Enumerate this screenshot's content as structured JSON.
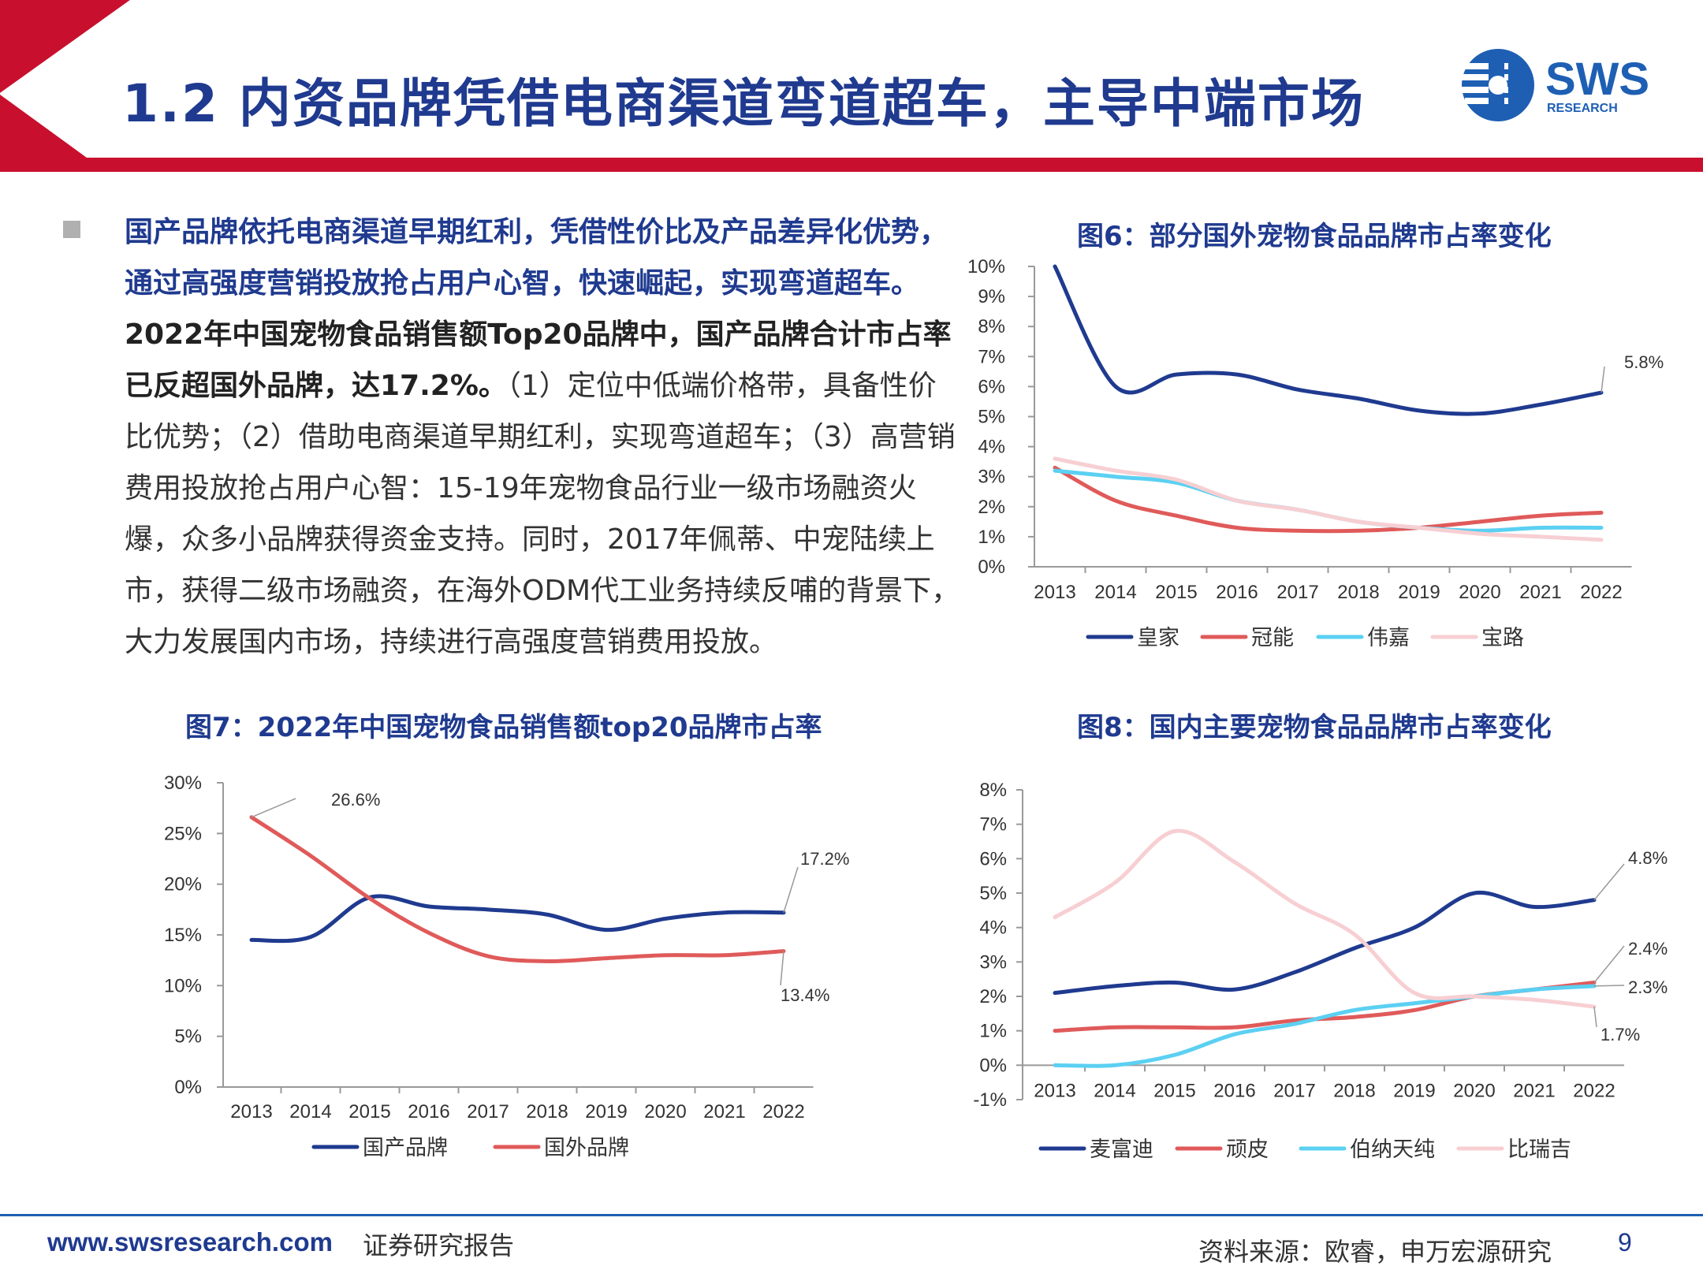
{
  "header": {
    "title": "1.2  内资品牌凭借电商渠道弯道超车，主导中端市场",
    "logo_text": "SWS",
    "logo_sub": "RESEARCH"
  },
  "body_text": {
    "part1": "国产品牌依托电商渠道早期红利，凭借性价比及产品差异化优势，通过高强度营销投放抢占用户心智，快速崛起，实现弯道超车。",
    "part2": "2022年中国宠物食品销售额Top20品牌中，国产品牌合计市占率已反超国外品牌，达17.2%。",
    "part3": "（1）定位中低端价格带，具备性价比优势；（2）借助电商渠道早期红利，实现弯道超车；（3）高营销费用投放抢占用户心智：15-19年宠物食品行业一级市场融资火爆，众多小品牌获得资金支持。同时，2017年佩蒂、中宠陆续上市，获得二级市场融资，在海外ODM代工业务持续反哺的背景下，大力发展国内市场，持续进行高强度营销费用投放。"
  },
  "footer": {
    "url": "www.swsresearch.com",
    "type": "证券研究报告",
    "source": "资料来源：欧睿，申万宏源研究",
    "page": "9"
  },
  "colors": {
    "navy": "#1f3a8f",
    "red": "#e05a5a",
    "cyan": "#5bd0f2",
    "pink": "#f7cfd2",
    "header_red": "#c8102e"
  },
  "chart_data": [
    {
      "id": "fig6",
      "type": "line",
      "title": "图6：部分国外宠物食品品牌市占率变化",
      "x": [
        "2013",
        "2014",
        "2015",
        "2016",
        "2017",
        "2018",
        "2019",
        "2020",
        "2021",
        "2022"
      ],
      "ylim": [
        0,
        10
      ],
      "yticks": [
        "0%",
        "1%",
        "2%",
        "3%",
        "4%",
        "5%",
        "6%",
        "7%",
        "8%",
        "9%",
        "10%"
      ],
      "series": [
        {
          "name": "皇家",
          "color": "#1f3a8f",
          "values": [
            10.0,
            6.0,
            6.4,
            6.4,
            5.9,
            5.6,
            5.2,
            5.1,
            5.4,
            5.8
          ]
        },
        {
          "name": "冠能",
          "color": "#e05a5a",
          "values": [
            3.3,
            2.2,
            1.7,
            1.3,
            1.2,
            1.2,
            1.3,
            1.5,
            1.7,
            1.8
          ]
        },
        {
          "name": "伟嘉",
          "color": "#5bd0f2",
          "values": [
            3.2,
            3.0,
            2.8,
            2.2,
            1.9,
            1.5,
            1.3,
            1.2,
            1.3,
            1.3
          ]
        },
        {
          "name": "宝路",
          "color": "#f7cfd2",
          "values": [
            3.6,
            3.2,
            2.9,
            2.2,
            1.9,
            1.5,
            1.3,
            1.1,
            1.0,
            0.9
          ]
        }
      ],
      "annotations": [
        "5.8%"
      ]
    },
    {
      "id": "fig7",
      "type": "line",
      "title": "图7：2022年中国宠物食品销售额top20品牌市占率",
      "x": [
        "2013",
        "2014",
        "2015",
        "2016",
        "2017",
        "2018",
        "2019",
        "2020",
        "2021",
        "2022"
      ],
      "ylim": [
        0,
        30
      ],
      "yticks": [
        "0%",
        "5%",
        "10%",
        "15%",
        "20%",
        "25%",
        "30%"
      ],
      "series": [
        {
          "name": "国产品牌",
          "color": "#1f3a8f",
          "values": [
            14.5,
            14.8,
            18.7,
            17.8,
            17.5,
            17.0,
            15.5,
            16.6,
            17.2,
            17.2
          ]
        },
        {
          "name": "国外品牌",
          "color": "#e05a5a",
          "values": [
            26.6,
            22.8,
            18.6,
            15.2,
            12.9,
            12.4,
            12.7,
            13.0,
            13.0,
            13.4
          ]
        }
      ],
      "annotations": [
        "26.6%",
        "17.2%",
        "13.4%"
      ]
    },
    {
      "id": "fig8",
      "type": "line",
      "title": "图8：国内主要宠物食品品牌市占率变化",
      "x": [
        "2013",
        "2014",
        "2015",
        "2016",
        "2017",
        "2018",
        "2019",
        "2020",
        "2021",
        "2022"
      ],
      "ylim": [
        -1,
        8
      ],
      "yticks": [
        "-1%",
        "0%",
        "1%",
        "2%",
        "3%",
        "4%",
        "5%",
        "6%",
        "7%",
        "8%"
      ],
      "series": [
        {
          "name": "麦富迪",
          "color": "#1f3a8f",
          "values": [
            2.1,
            2.3,
            2.4,
            2.2,
            2.7,
            3.4,
            4.0,
            5.0,
            4.6,
            4.8
          ]
        },
        {
          "name": "顽皮",
          "color": "#e05a5a",
          "values": [
            1.0,
            1.1,
            1.1,
            1.1,
            1.3,
            1.4,
            1.6,
            2.0,
            2.2,
            2.4
          ]
        },
        {
          "name": "伯纳天纯",
          "color": "#5bd0f2",
          "values": [
            0.0,
            0.0,
            0.3,
            0.9,
            1.2,
            1.6,
            1.8,
            2.0,
            2.2,
            2.3
          ]
        },
        {
          "name": "比瑞吉",
          "color": "#f7cfd2",
          "values": [
            4.3,
            5.3,
            6.8,
            5.9,
            4.7,
            3.8,
            2.1,
            2.0,
            1.9,
            1.7
          ]
        }
      ],
      "annotations": [
        "4.8%",
        "2.4%",
        "2.3%",
        "1.7%"
      ]
    }
  ]
}
